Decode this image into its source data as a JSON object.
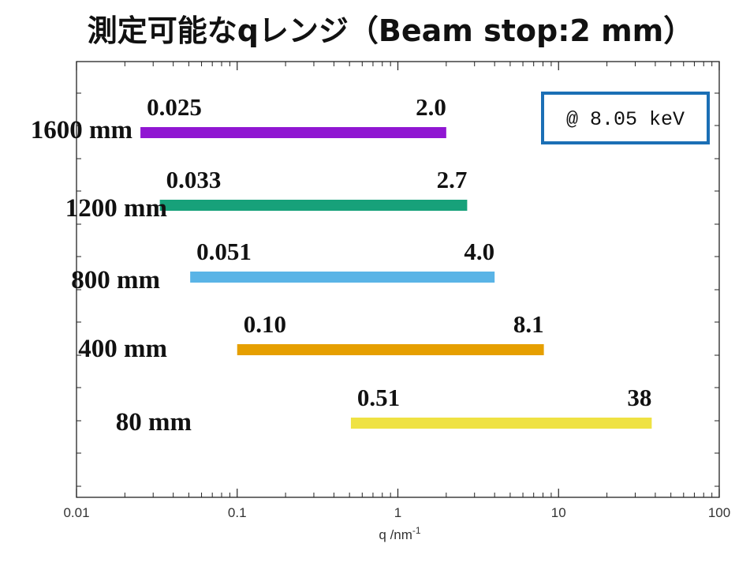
{
  "chart_data": {
    "type": "range-bar",
    "title": "測定可能なqレンジ（Beam stop:2 mm）",
    "xlabel": "q /nm-1",
    "x_scale": "log",
    "xlim": [
      0.01,
      100
    ],
    "x_ticks": [
      "0.01",
      "0.1",
      "1",
      "10",
      "100"
    ],
    "annotation": "@ 8.05 keV",
    "series": [
      {
        "name": "1600 mm",
        "min": 0.025,
        "max": 2.0,
        "min_label": "0.025",
        "max_label": "2.0",
        "color": "#9016d2"
      },
      {
        "name": "1200 mm",
        "min": 0.033,
        "max": 2.7,
        "min_label": "0.033",
        "max_label": "2.7",
        "color": "#17a17a"
      },
      {
        "name": "800 mm",
        "min": 0.051,
        "max": 4.0,
        "min_label": "0.051",
        "max_label": "4.0",
        "color": "#5ab4e6"
      },
      {
        "name": "400 mm",
        "min": 0.1,
        "max": 8.1,
        "min_label": "0.10",
        "max_label": "8.1",
        "color": "#e69f00"
      },
      {
        "name": "80 mm",
        "min": 0.51,
        "max": 38,
        "min_label": "0.51",
        "max_label": "38",
        "color": "#efe243"
      }
    ],
    "colors": {
      "annotation_border": "#1b6fb5",
      "axis": "#222222"
    }
  }
}
